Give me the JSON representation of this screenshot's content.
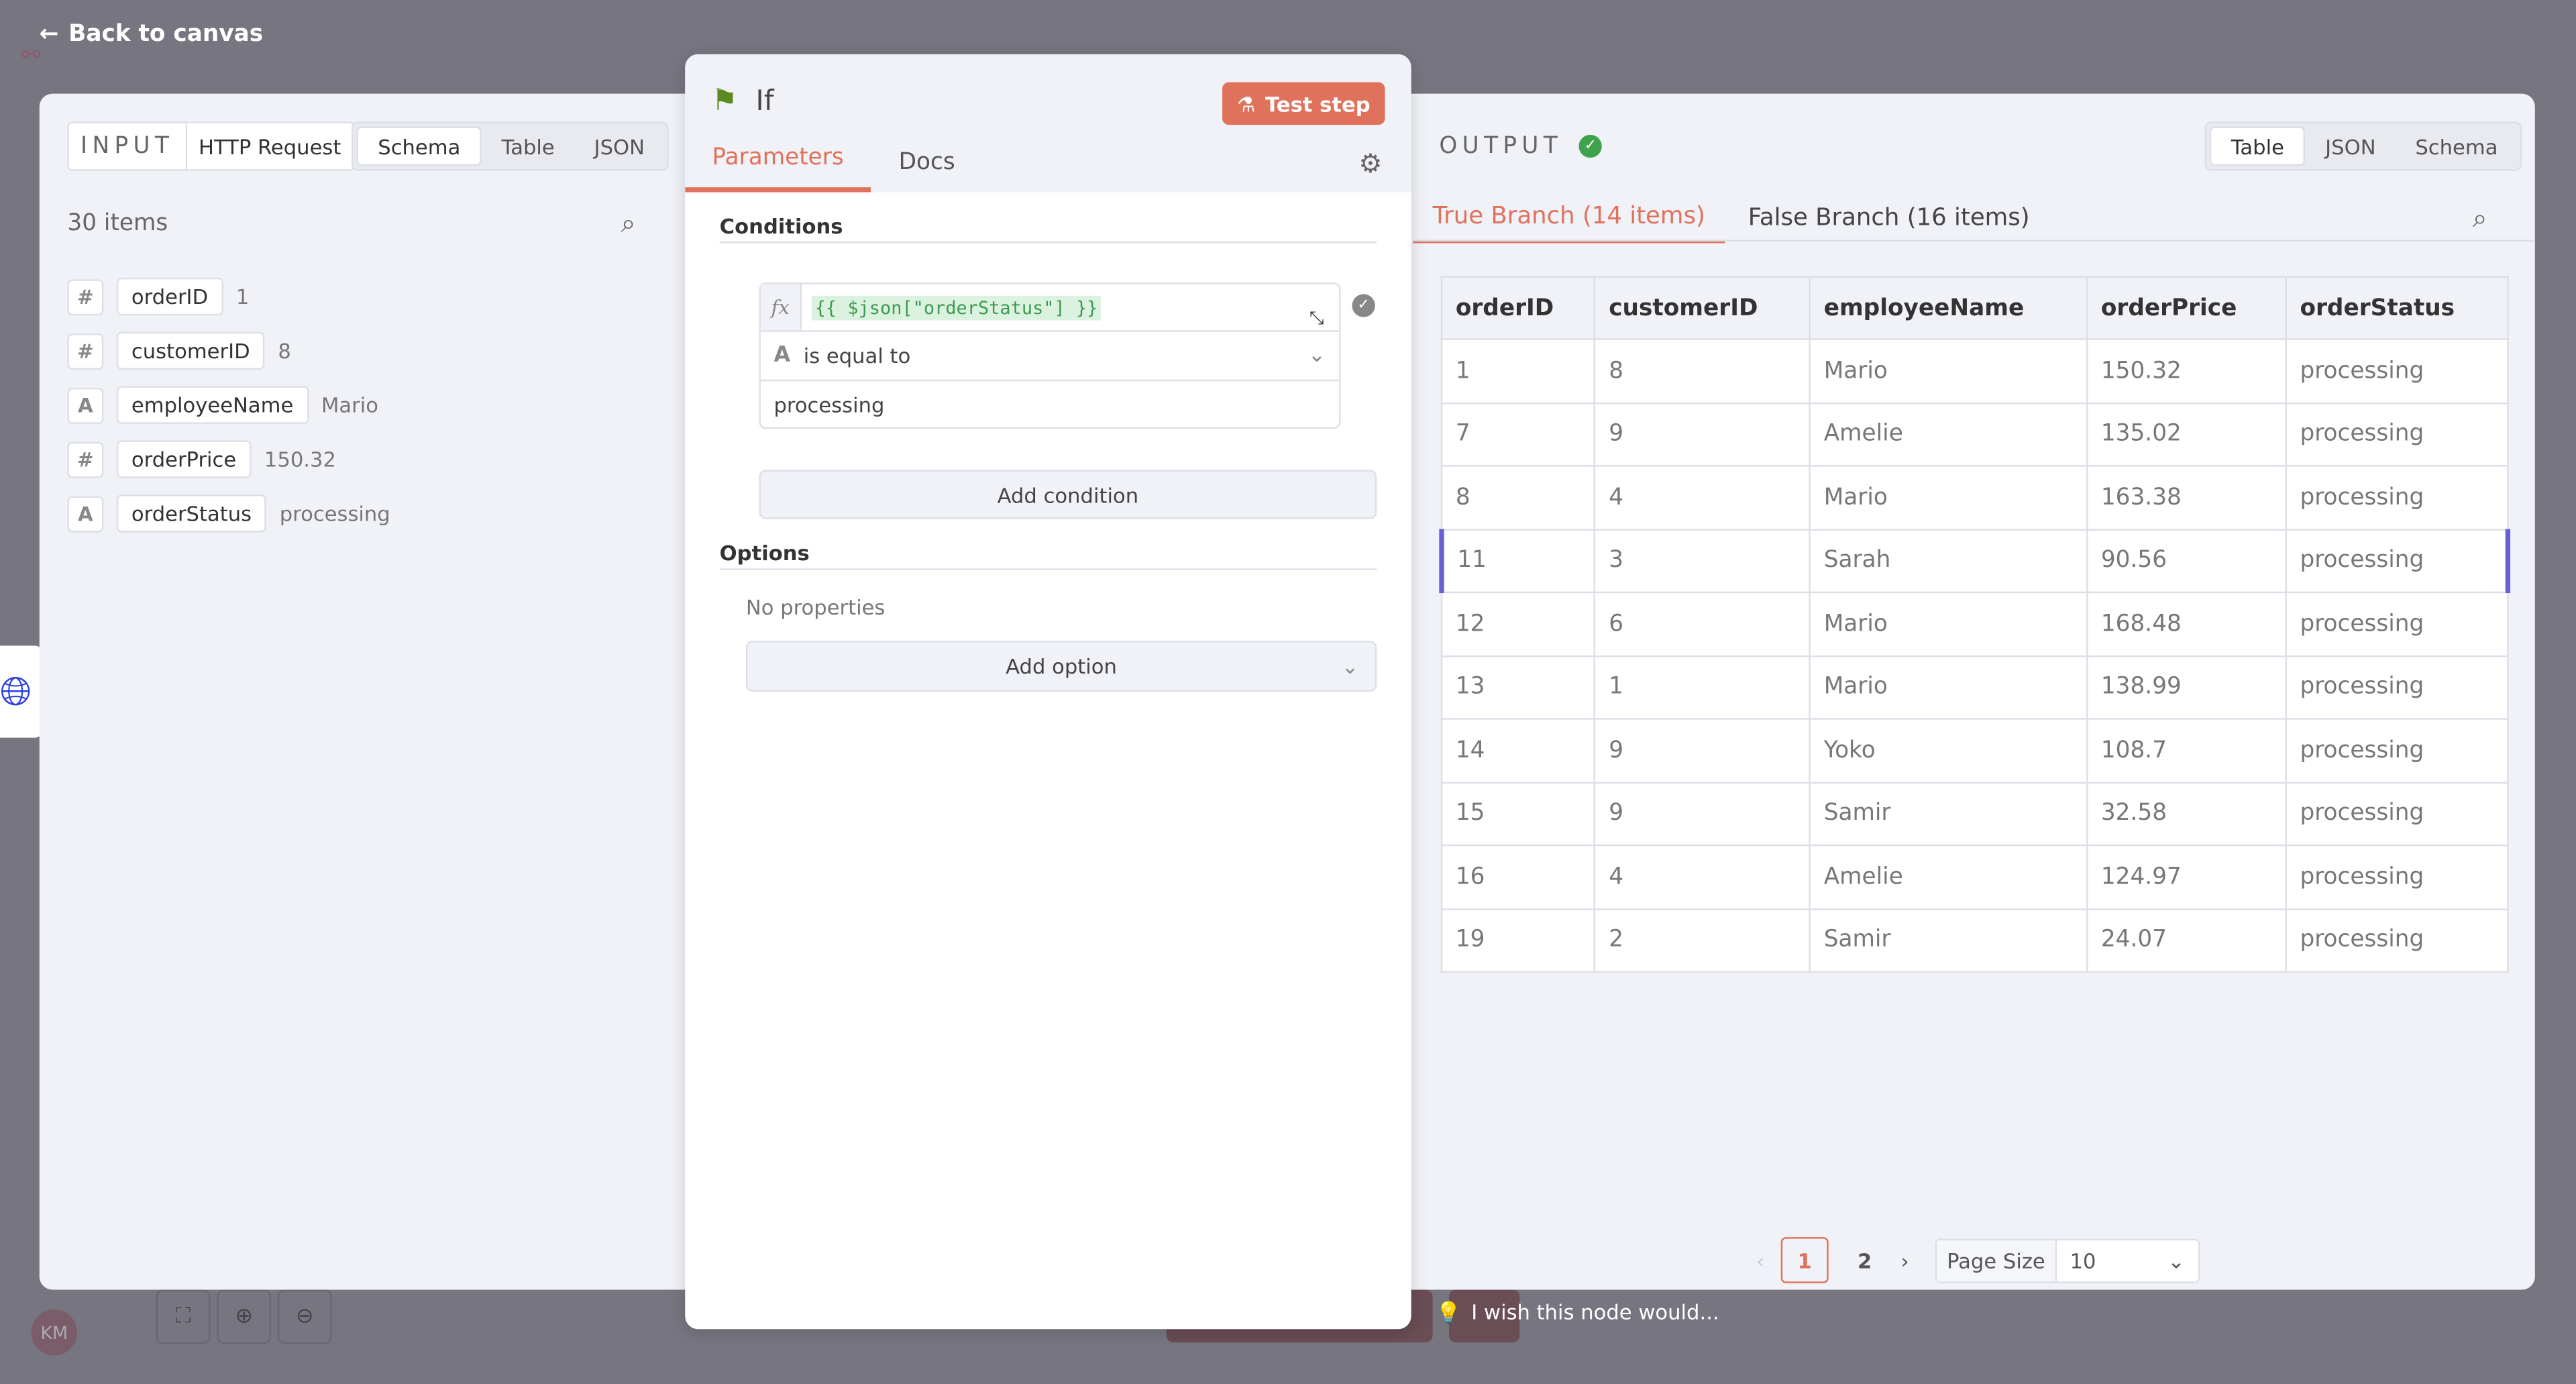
{
  "nav": {
    "back_label": "Back to canvas"
  },
  "input": {
    "label": "INPUT",
    "source": "HTTP Request",
    "tabs": [
      "Schema",
      "Table",
      "JSON"
    ],
    "active_tab": "Schema",
    "count": "30 items",
    "fields": [
      {
        "type": "#",
        "name": "orderID",
        "value": "1"
      },
      {
        "type": "#",
        "name": "customerID",
        "value": "8"
      },
      {
        "type": "A",
        "name": "employeeName",
        "value": "Mario"
      },
      {
        "type": "#",
        "name": "orderPrice",
        "value": "150.32"
      },
      {
        "type": "A",
        "name": "orderStatus",
        "value": "processing"
      }
    ]
  },
  "node": {
    "title": "If",
    "test_label": "Test step",
    "tabs": [
      "Parameters",
      "Docs"
    ],
    "active_tab": "Parameters",
    "conditions_label": "Conditions",
    "fx": "fx",
    "expression": "{{ $json[\"orderStatus\"] }}",
    "operator_type": "A",
    "operator": "is equal to",
    "value": "processing",
    "add_condition": "Add condition",
    "options_label": "Options",
    "no_properties": "No properties",
    "add_option": "Add option",
    "accent": "#e0725c",
    "icon_color": "#5b8a1e"
  },
  "output": {
    "label": "OUTPUT",
    "tabs": [
      "Table",
      "JSON",
      "Schema"
    ],
    "active_tab": "Table",
    "branches": [
      "True Branch (14 items)",
      "False Branch (16 items)"
    ],
    "active_branch": 0,
    "columns": [
      "orderID",
      "customerID",
      "employeeName",
      "orderPrice",
      "orderStatus"
    ],
    "rows": [
      [
        "1",
        "8",
        "Mario",
        "150.32",
        "processing"
      ],
      [
        "7",
        "9",
        "Amelie",
        "135.02",
        "processing"
      ],
      [
        "8",
        "4",
        "Mario",
        "163.38",
        "processing"
      ],
      [
        "11",
        "3",
        "Sarah",
        "90.56",
        "processing"
      ],
      [
        "12",
        "6",
        "Mario",
        "168.48",
        "processing"
      ],
      [
        "13",
        "1",
        "Mario",
        "138.99",
        "processing"
      ],
      [
        "14",
        "9",
        "Yoko",
        "108.7",
        "processing"
      ],
      [
        "15",
        "9",
        "Samir",
        "32.58",
        "processing"
      ],
      [
        "16",
        "4",
        "Amelie",
        "124.97",
        "processing"
      ],
      [
        "19",
        "2",
        "Samir",
        "24.07",
        "processing"
      ]
    ],
    "pagination": {
      "pages": [
        "1",
        "2"
      ],
      "current": "1",
      "page_size_label": "Page Size",
      "page_size": "10"
    }
  },
  "footer": {
    "feedback": "I wish this node would...",
    "avatar": "KM"
  }
}
